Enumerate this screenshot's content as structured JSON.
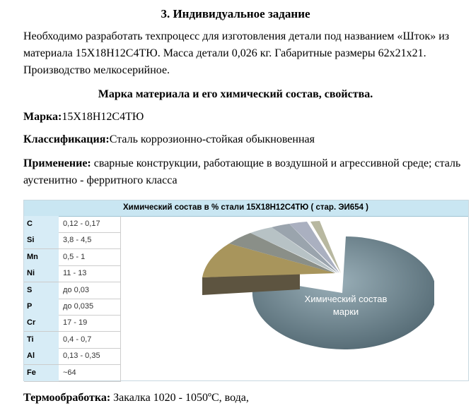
{
  "title": "3. Индивидуальное задание",
  "intro": "Необходимо разработать техпроцесс для изготовления детали под названием «Шток» из материала 15Х18Н12С4ТЮ. Масса детали 0,026 кг. Габаритные размеры 62х21х21. Производство мелкосерийное.",
  "subtitle": "Марка материала и его химический состав, свойства.",
  "fields": [
    {
      "label": "Марка:",
      "value": "15Х18Н12С4ТЮ"
    },
    {
      "label": "Классификация:",
      "value": "Сталь коррозионно-стойкая обыкновенная"
    },
    {
      "label": "Применение:",
      "value": " сварные конструкции, работающие в воздушной и агрессивной среде; сталь аустенитно - ферритного класса"
    },
    {
      "label": "Термообработка:",
      "value": " Закалка 1020 - 1050ºC, вода,"
    }
  ],
  "table": {
    "header": "Химический состав в % стали 15Х18Н12С4ТЮ ( стар. ЭИ654 )",
    "rows": [
      [
        "C",
        "0,12 - 0,17"
      ],
      [
        "Si",
        "3,8 - 4,5"
      ],
      [
        "Mn",
        "0,5 - 1"
      ],
      [
        "Ni",
        "11 - 13"
      ],
      [
        "S",
        "до 0,03"
      ],
      [
        "P",
        "до 0,035"
      ],
      [
        "Cr",
        "17 - 19"
      ],
      [
        "Ti",
        "0,4 - 0,7"
      ],
      [
        "Al",
        "0,13 - 0,35"
      ],
      [
        "Fe",
        "~64"
      ]
    ],
    "pie_label_1": "Химический состав",
    "pie_label_2": "марки"
  }
}
